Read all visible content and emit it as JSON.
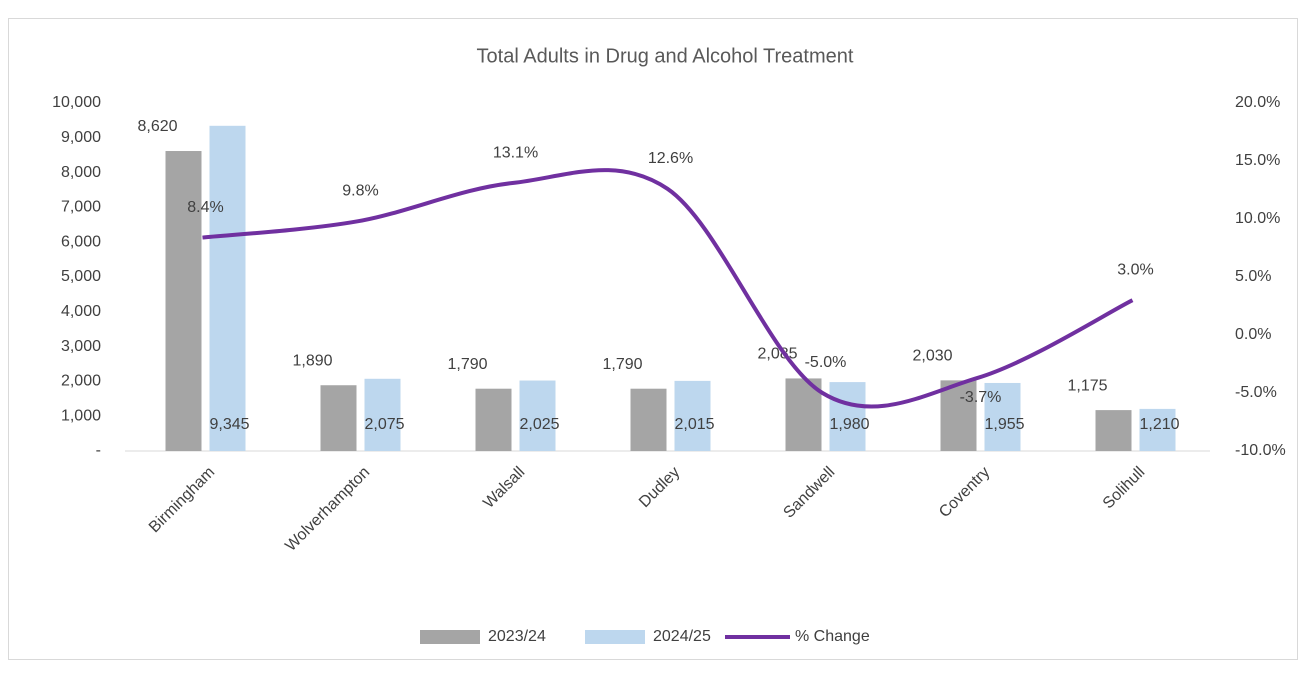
{
  "chart_data": {
    "type": "bar",
    "title": "Total Adults in Drug and Alcohol Treatment",
    "categories": [
      "Birmingham",
      "Wolverhampton",
      "Walsall",
      "Dudley",
      "Sandwell",
      "Coventry",
      "Solihull"
    ],
    "series": [
      {
        "name": "2023/24",
        "color": "#a5a5a5",
        "type": "bar",
        "values": [
          8620,
          1890,
          1790,
          1790,
          2085,
          2030,
          1175
        ],
        "value_labels": [
          "8,620",
          "1,890",
          "1,790",
          "1,790",
          "2,085",
          "2,030",
          "1,175"
        ]
      },
      {
        "name": "2024/25",
        "color": "#bdd7ee",
        "type": "bar",
        "values": [
          9345,
          2075,
          2025,
          2015,
          1980,
          1955,
          1210
        ],
        "value_labels": [
          "9,345",
          "2,075",
          "2,025",
          "2,015",
          "1,980",
          "1,955",
          "1,210"
        ]
      },
      {
        "name": "% Change",
        "color": "#7030a0",
        "type": "line",
        "axis": "y2",
        "values": [
          8.4,
          9.8,
          13.1,
          12.6,
          -5.0,
          -3.7,
          3.0
        ],
        "value_labels": [
          "8.4%",
          "9.8%",
          "13.1%",
          "12.6%",
          "-5.0%",
          "-3.7%",
          "3.0%"
        ]
      }
    ],
    "ylim": [
      0,
      10000
    ],
    "yticks": [
      {
        "value": 0,
        "label": "-"
      },
      {
        "value": 1000,
        "label": "1,000"
      },
      {
        "value": 2000,
        "label": "2,000"
      },
      {
        "value": 3000,
        "label": "3,000"
      },
      {
        "value": 4000,
        "label": "4,000"
      },
      {
        "value": 5000,
        "label": "5,000"
      },
      {
        "value": 6000,
        "label": "6,000"
      },
      {
        "value": 7000,
        "label": "7,000"
      },
      {
        "value": 8000,
        "label": "8,000"
      },
      {
        "value": 9000,
        "label": "9,000"
      },
      {
        "value": 10000,
        "label": "10,000"
      }
    ],
    "y2lim": [
      -10,
      20
    ],
    "y2ticks": [
      {
        "value": -10,
        "label": "-10.0%"
      },
      {
        "value": -5,
        "label": "-5.0%"
      },
      {
        "value": 0,
        "label": "0.0%"
      },
      {
        "value": 5,
        "label": "5.0%"
      },
      {
        "value": 10,
        "label": "10.0%"
      },
      {
        "value": 15,
        "label": "15.0%"
      },
      {
        "value": 20,
        "label": "20.0%"
      }
    ],
    "legend": "bottom",
    "grid": false
  }
}
